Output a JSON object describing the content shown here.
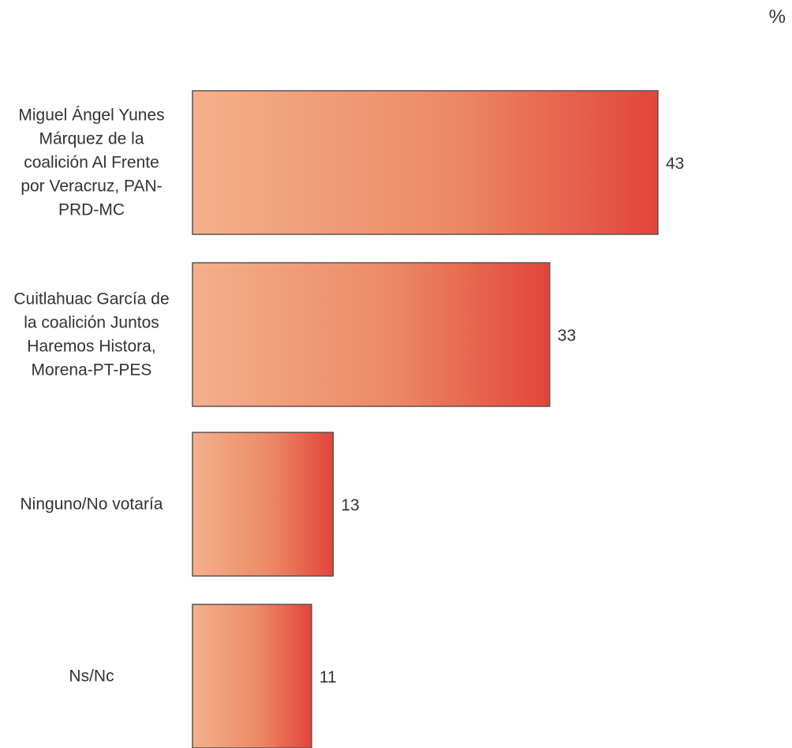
{
  "chart_data": {
    "type": "bar",
    "orientation": "horizontal",
    "unit": "%",
    "categories": [
      "Miguel Ángel Yunes Márquez  de la coalición Al Frente por Veracruz, PAN-PRD-MC",
      "Cuitlahuac García de la coalición  Juntos Haremos Histora, Morena-PT-PES",
      "Ninguno/No votaría",
      "Ns/Nc"
    ],
    "category_lines": [
      [
        "Miguel Ángel Yunes",
        "Márquez  de la",
        "coalición Al Frente",
        "por Veracruz, PAN-",
        "PRD-MC"
      ],
      [
        "Cuitlahuac García de",
        "la coalición  Juntos",
        "Haremos Histora,",
        "Morena-PT-PES"
      ],
      [
        "Ninguno/No votaría"
      ],
      [
        "Ns/Nc"
      ]
    ],
    "values": [
      43,
      33,
      13,
      11
    ],
    "value_labels": [
      "43",
      "33",
      "13",
      "11"
    ],
    "xlim": [
      0,
      43
    ],
    "grid": false,
    "legend": "none",
    "colors": {
      "bar_light": "#f4b08a",
      "bar_dark": "#e2453a",
      "bar_border": "#555555",
      "text": "#333333"
    }
  }
}
